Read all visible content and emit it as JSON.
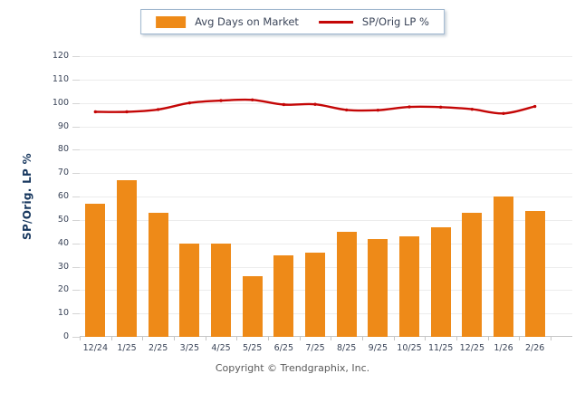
{
  "legend": {
    "bar_label": "Avg Days on Market",
    "line_label": "SP/Orig LP %"
  },
  "y_axis_title": "SP/Orig. LP %",
  "footer": "Copyright © Trendgraphix, Inc.",
  "colors": {
    "bar": "#EE8A18",
    "line": "#C40606",
    "grid": "#ECECEC",
    "axis": "#C6C6C6",
    "tick_text": "#3A4458",
    "title_text": "#17375E",
    "footer_text": "#595959",
    "legend_border": "#9FB6CE"
  },
  "chart_data": {
    "type": "bar",
    "title": "",
    "xlabel": "",
    "ylabel": "SP/Orig. LP %",
    "ylim": [
      0,
      120
    ],
    "ytick_step": 10,
    "grid": true,
    "legend_position": "top-center",
    "categories": [
      "12/24",
      "1/25",
      "2/25",
      "3/25",
      "4/25",
      "5/25",
      "6/25",
      "7/25",
      "8/25",
      "9/25",
      "10/25",
      "11/25",
      "12/25",
      "1/26",
      "2/26"
    ],
    "series": [
      {
        "name": "Avg Days on Market",
        "type": "bar",
        "color": "#EE8A18",
        "values": [
          57,
          67,
          53,
          40,
          40,
          26,
          35,
          36,
          45,
          42,
          43,
          47,
          53,
          60,
          54
        ]
      },
      {
        "name": "SP/Orig LP %",
        "type": "line",
        "color": "#C40606",
        "values": [
          96.2,
          96.2,
          97.2,
          100.0,
          101.0,
          101.3,
          99.3,
          99.4,
          97.0,
          96.9,
          98.3,
          98.2,
          97.3,
          95.5,
          98.5
        ]
      }
    ]
  }
}
